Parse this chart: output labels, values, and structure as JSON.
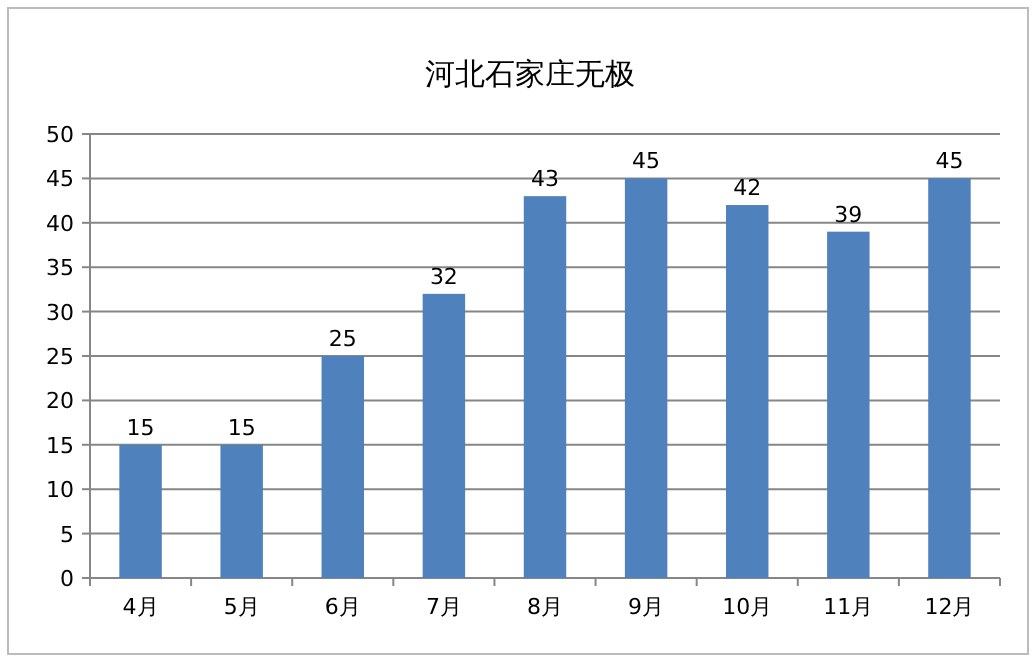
{
  "chart_data": {
    "type": "bar",
    "title": "河北石家庄无极",
    "categories": [
      "4月",
      "5月",
      "6月",
      "7月",
      "8月",
      "9月",
      "10月",
      "11月",
      "12月"
    ],
    "values": [
      15,
      15,
      25,
      32,
      43,
      45,
      42,
      39,
      45
    ],
    "color": "#4f81bd",
    "ylim": [
      0,
      50
    ],
    "yticks": [
      0,
      5,
      10,
      15,
      20,
      25,
      30,
      35,
      40,
      45,
      50
    ],
    "grid": "y",
    "data_labels": true
  }
}
